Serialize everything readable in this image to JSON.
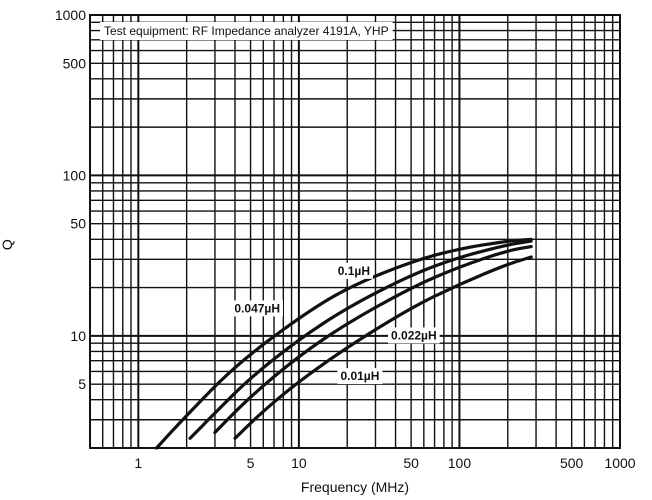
{
  "chart_data": {
    "type": "line",
    "title": "",
    "note": "Test equipment: RF Impedance analyzer 4191A, YHP",
    "xlabel": "Frequency (MHz)",
    "ylabel": "Q",
    "xscale": "log",
    "yscale": "log",
    "xlim": [
      0.5,
      1000
    ],
    "ylim": [
      2,
      1000
    ],
    "xticks": [
      {
        "value": 1,
        "label": "1"
      },
      {
        "value": 5,
        "label": "5"
      },
      {
        "value": 10,
        "label": "10"
      },
      {
        "value": 50,
        "label": "50"
      },
      {
        "value": 100,
        "label": "100"
      },
      {
        "value": 500,
        "label": "500"
      },
      {
        "value": 1000,
        "label": "1000"
      }
    ],
    "yticks": [
      {
        "value": 5,
        "label": "5"
      },
      {
        "value": 10,
        "label": "10"
      },
      {
        "value": 50,
        "label": "50"
      },
      {
        "value": 100,
        "label": "100"
      },
      {
        "value": 500,
        "label": "500"
      },
      {
        "value": 1000,
        "label": "1000"
      }
    ],
    "grid": true,
    "series": [
      {
        "name": "0.1µH",
        "label_at": {
          "x": 22,
          "y": 24
        },
        "points": [
          [
            1.3,
            2.0
          ],
          [
            2,
            3.2
          ],
          [
            4,
            6.5
          ],
          [
            10,
            13
          ],
          [
            20,
            20
          ],
          [
            50,
            29
          ],
          [
            100,
            35
          ],
          [
            200,
            39
          ],
          [
            280,
            40
          ]
        ]
      },
      {
        "name": "0.047µH",
        "label_at": {
          "x": 5.5,
          "y": 14
        },
        "points": [
          [
            2.1,
            2.3
          ],
          [
            3,
            3.3
          ],
          [
            5,
            5.5
          ],
          [
            10,
            9.5
          ],
          [
            20,
            15
          ],
          [
            50,
            24
          ],
          [
            100,
            31
          ],
          [
            200,
            37
          ],
          [
            280,
            39
          ]
        ]
      },
      {
        "name": "0.022µH",
        "label_at": {
          "x": 52,
          "y": 9.5
        },
        "points": [
          [
            3.0,
            2.5
          ],
          [
            5,
            4.2
          ],
          [
            10,
            7.5
          ],
          [
            20,
            12
          ],
          [
            50,
            20
          ],
          [
            100,
            27
          ],
          [
            200,
            34
          ],
          [
            280,
            36
          ]
        ]
      },
      {
        "name": "0.01µH",
        "label_at": {
          "x": 24,
          "y": 5.3
        },
        "points": [
          [
            4.0,
            2.3
          ],
          [
            6,
            3.4
          ],
          [
            10,
            5.2
          ],
          [
            20,
            8.5
          ],
          [
            50,
            15
          ],
          [
            100,
            21
          ],
          [
            200,
            28
          ],
          [
            280,
            31
          ]
        ]
      }
    ]
  }
}
